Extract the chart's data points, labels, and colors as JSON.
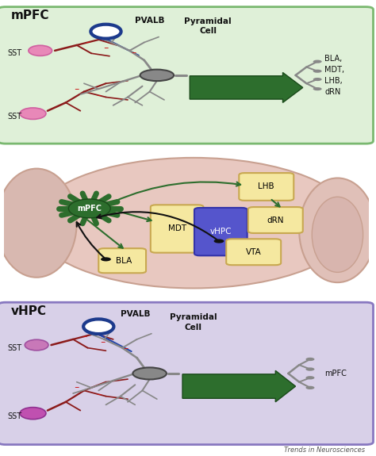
{
  "panel1": {
    "bg_color": "#dff0d8",
    "border_color": "#7ab870",
    "title": "mPFC",
    "sst_color": "#e888b8",
    "sst_edge_color": "#d060a0",
    "pvalb_fill": "#ffffff",
    "pvalb_edge": "#1c3a8c",
    "neuron_soma_fill": "#888888",
    "neuron_soma_edge": "#444444",
    "dendrite_color": "#888888",
    "sst_axon_color": "#8b1a1a",
    "pvalb_axon_color": "#2244aa",
    "arrow_color": "#2d6e2d",
    "arrow_edge": "#1a4a1a",
    "minus_color": "#cc1111",
    "target_labels": "BLA,\nMDT,\nLHB,\ndRN"
  },
  "panel2": {
    "brain_fill": "#e8c8c0",
    "brain_edge": "#c8a090",
    "front_fill": "#d8b8b0",
    "front_edge": "#c8a090",
    "cereb_fill": "#e0c0b8",
    "cereb_edge": "#c8a090",
    "star_color": "#2d6e2d",
    "star_edge": "#1a4a1a",
    "box_fill": "#f5e8a0",
    "box_edge": "#c8a850",
    "vhpc_fill": "#5555cc",
    "vhpc_edge": "#3333aa",
    "arrow_green": "#2d6e2d",
    "arrow_black": "#111111",
    "dot_color": "#111111"
  },
  "panel3": {
    "bg_color": "#d8d0e8",
    "border_color": "#8878c0",
    "title": "vHPC",
    "sst_top_color": "#c878b8",
    "sst_top_edge": "#a050a0",
    "sst_bot_color": "#c050b0",
    "sst_bot_edge": "#903090",
    "pvalb_fill": "#ffffff",
    "pvalb_edge": "#1c3a8c",
    "neuron_soma_fill": "#888888",
    "neuron_soma_edge": "#444444",
    "dendrite_color": "#888888",
    "sst_axon_color": "#8b1a1a",
    "pvalb_axon_color": "#2244aa",
    "arrow_color": "#2d6e2d",
    "arrow_edge": "#1a4a1a",
    "minus_color": "#cc1111",
    "target_label": "mPFC"
  },
  "watermark": "Trends in Neurosciences",
  "fig_bg": "#ffffff"
}
